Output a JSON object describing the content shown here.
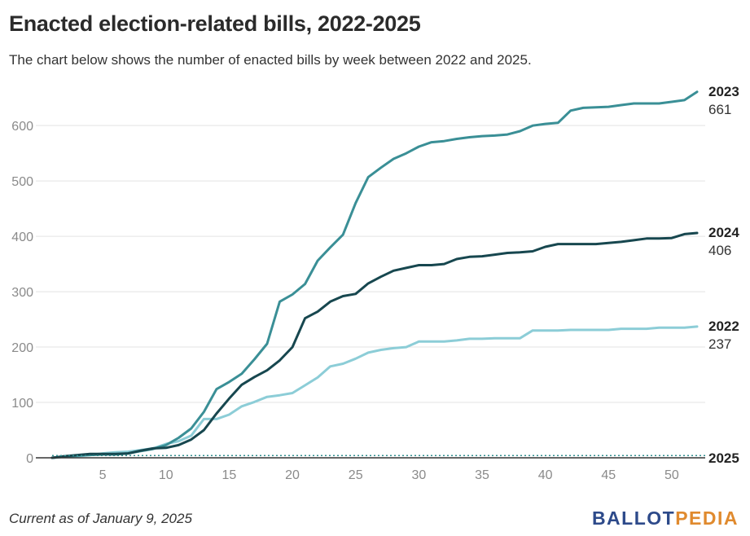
{
  "title": "Enacted election-related bills, 2022-2025",
  "subtitle": "The chart below shows the number of enacted bills by week between 2022 and 2025.",
  "footnote": "Current as of January 9, 2025",
  "logo": {
    "part1": "BALLOT",
    "part2": "PEDIA"
  },
  "colors": {
    "2022": "#8ccdd7",
    "2023": "#3a8f96",
    "2024": "#17474f",
    "2025": "#2f8e8e",
    "grid": "#e3e3e3",
    "axis": "#333333",
    "logo_blue": "#2d4a8a",
    "logo_orange": "#e08a2e"
  },
  "chart_data": {
    "type": "line",
    "title": "Enacted election-related bills, 2022-2025",
    "xlabel": "",
    "ylabel": "",
    "xlim": [
      1,
      52
    ],
    "ylim": [
      0,
      665
    ],
    "xticks": [
      5,
      10,
      15,
      20,
      25,
      30,
      35,
      40,
      45,
      50
    ],
    "yticks": [
      0,
      100,
      200,
      300,
      400,
      500,
      600
    ],
    "grid": "horizontal",
    "legend": "end-labels",
    "series": [
      {
        "name": "2022",
        "end_label": "237",
        "values": [
          0,
          2,
          3,
          5,
          8,
          10,
          11,
          14,
          17,
          25,
          30,
          40,
          70,
          70,
          78,
          93,
          101,
          110,
          113,
          117,
          131,
          145,
          165,
          170,
          179,
          190,
          195,
          198,
          200,
          210,
          210,
          210,
          212,
          215,
          215,
          216,
          216,
          216,
          230,
          230,
          230,
          231,
          231,
          231,
          231,
          233,
          233,
          233,
          235,
          235,
          235,
          237
        ]
      },
      {
        "name": "2023",
        "end_label": "661",
        "values": [
          0,
          2,
          4,
          5,
          6,
          6,
          8,
          12,
          16,
          23,
          36,
          53,
          83,
          124,
          137,
          152,
          178,
          206,
          282,
          295,
          314,
          356,
          380,
          403,
          460,
          507,
          524,
          540,
          550,
          562,
          570,
          572,
          576,
          579,
          581,
          582,
          584,
          590,
          600,
          603,
          605,
          627,
          632,
          633,
          634,
          637,
          640,
          640,
          640,
          643,
          646,
          661
        ]
      },
      {
        "name": "2024",
        "end_label": "406",
        "values": [
          0,
          3,
          5,
          7,
          7,
          7,
          8,
          13,
          17,
          18,
          23,
          33,
          50,
          80,
          107,
          132,
          146,
          158,
          176,
          200,
          252,
          264,
          282,
          292,
          296,
          315,
          327,
          338,
          343,
          348,
          348,
          350,
          359,
          363,
          364,
          367,
          370,
          371,
          373,
          381,
          386,
          386,
          386,
          386,
          388,
          390,
          393,
          396,
          396,
          397,
          404,
          406
        ]
      },
      {
        "name": "2025",
        "end_label": "",
        "values": [
          4
        ]
      }
    ]
  }
}
